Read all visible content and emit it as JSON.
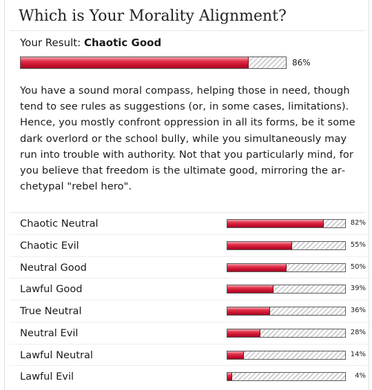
{
  "quiz": {
    "title": "Which is Your Morality Alignment?"
  },
  "result": {
    "label": "Your Result:",
    "value": "Chaotic Good",
    "percent": 86,
    "percent_text": "86%",
    "description": "You have a sound moral compass, helping those in need, though tend to see rules as suggestions (or, in some cases, limitations). Hence, you mostly confront oppression in all its forms, be it some dark overlord or the school bully, while you simultaneously may run into trouble with authority. Not that you particularly mind, for you believe that freedom is the ultimate good, mirroring the ar­chetypal \"rebel hero\"."
  },
  "other_results": [
    {
      "label": "Chaotic Neutral",
      "percent": 82,
      "percent_text": "82%"
    },
    {
      "label": "Chaotic Evil",
      "percent": 55,
      "percent_text": "55%"
    },
    {
      "label": "Neutral Good",
      "percent": 50,
      "percent_text": "50%"
    },
    {
      "label": "Lawful Good",
      "percent": 39,
      "percent_text": "39%"
    },
    {
      "label": "True Neutral",
      "percent": 36,
      "percent_text": "36%"
    },
    {
      "label": "Neutral Evil",
      "percent": 28,
      "percent_text": "28%"
    },
    {
      "label": "Lawful Neutral",
      "percent": 14,
      "percent_text": "14%"
    },
    {
      "label": "Lawful Evil",
      "percent": 4,
      "percent_text": "4%"
    }
  ],
  "colors": {
    "bar_fill": "#c8102e",
    "bar_track_stripe": "#cfcfcf",
    "text": "#1a1a1a"
  }
}
